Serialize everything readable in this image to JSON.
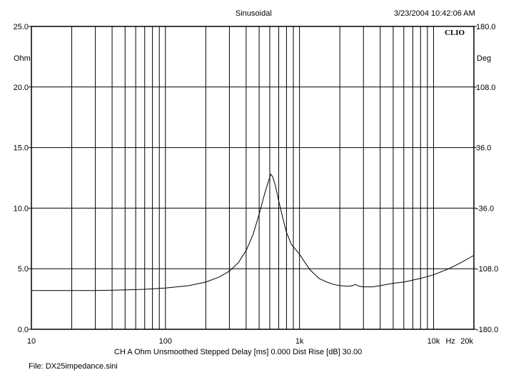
{
  "header": {
    "title": "Sinusoidal",
    "timestamp": "3/23/2004 10:42:06 AM",
    "brand": "CLIO"
  },
  "chart_data": {
    "type": "line",
    "title": "Sinusoidal",
    "x_scale": "log",
    "xlim": [
      10,
      20000
    ],
    "x_ticks": [
      {
        "value": 10,
        "label": "10"
      },
      {
        "value": 100,
        "label": "100"
      },
      {
        "value": 1000,
        "label": "1k"
      },
      {
        "value": 10000,
        "label": "10k"
      },
      {
        "value": 20000,
        "label": "20k"
      }
    ],
    "x_unit": "Hz",
    "y_left": {
      "unit": "Ohm",
      "range": [
        0,
        25
      ],
      "ticks": [
        "25.0",
        "20.0",
        "15.0",
        "10.0",
        "5.0",
        "0.0"
      ]
    },
    "y_right": {
      "unit": "Deg",
      "range": [
        -180,
        180
      ],
      "ticks": [
        "180.0",
        "108.0",
        "36.0",
        "-36.0",
        "-108.0",
        "-180.0"
      ]
    },
    "grid": true,
    "series": [
      {
        "color": "#000000",
        "points": [
          [
            10,
            3.2
          ],
          [
            12,
            3.2
          ],
          [
            20,
            3.2
          ],
          [
            30,
            3.2
          ],
          [
            50,
            3.25
          ],
          [
            70,
            3.3
          ],
          [
            100,
            3.4
          ],
          [
            150,
            3.6
          ],
          [
            200,
            3.9
          ],
          [
            250,
            4.3
          ],
          [
            300,
            4.8
          ],
          [
            350,
            5.5
          ],
          [
            400,
            6.5
          ],
          [
            450,
            7.8
          ],
          [
            500,
            9.5
          ],
          [
            550,
            11.2
          ],
          [
            590,
            12.3
          ],
          [
            610,
            12.8
          ],
          [
            630,
            12.6
          ],
          [
            660,
            11.9
          ],
          [
            700,
            10.6
          ],
          [
            750,
            9.2
          ],
          [
            800,
            8.0
          ],
          [
            870,
            7.0
          ],
          [
            950,
            6.5
          ],
          [
            1000,
            6.2
          ],
          [
            1100,
            5.5
          ],
          [
            1200,
            4.9
          ],
          [
            1400,
            4.2
          ],
          [
            1600,
            3.9
          ],
          [
            1800,
            3.7
          ],
          [
            2000,
            3.6
          ],
          [
            2300,
            3.55
          ],
          [
            2500,
            3.6
          ],
          [
            2600,
            3.7
          ],
          [
            2800,
            3.55
          ],
          [
            3000,
            3.5
          ],
          [
            3500,
            3.5
          ],
          [
            4000,
            3.6
          ],
          [
            5000,
            3.8
          ],
          [
            6000,
            3.9
          ],
          [
            8000,
            4.2
          ],
          [
            10000,
            4.5
          ],
          [
            13000,
            5.0
          ],
          [
            16000,
            5.5
          ],
          [
            20000,
            6.1
          ]
        ]
      }
    ]
  },
  "footer": {
    "settings": "CH A   Ohm   Unsmoothed   Stepped    Delay [ms] 0.000   Dist Rise [dB] 30.00",
    "file": "File: DX25impedance.sini"
  }
}
